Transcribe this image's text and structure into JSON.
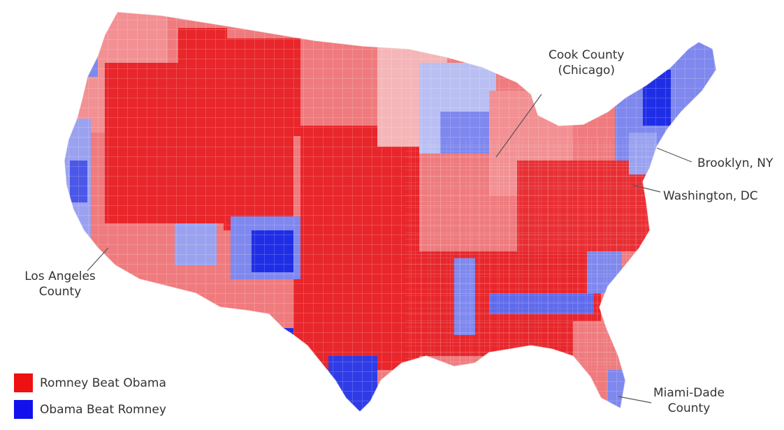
{
  "legend": {
    "items": [
      {
        "label": "Romney Beat Obama",
        "color": "#ee1111"
      },
      {
        "label": "Obama Beat Romney",
        "color": "#1111ee"
      }
    ]
  },
  "callouts": {
    "cook": {
      "line1": "Cook County",
      "line2": "(Chicago)"
    },
    "brooklyn": {
      "line1": "Brooklyn, NY"
    },
    "washington": {
      "line1": "Washington, DC"
    },
    "la": {
      "line1": "Los Angeles",
      "line2": "County"
    },
    "miami": {
      "line1": "Miami-Dade",
      "line2": "County"
    }
  },
  "palette": {
    "strong_red": "#e8262b",
    "mid_red": "#ef7b7e",
    "light_red": "#f4b6b8",
    "light_blue": "#b9bff3",
    "mid_blue": "#7f88ee",
    "strong_blue": "#1f2ee6"
  }
}
